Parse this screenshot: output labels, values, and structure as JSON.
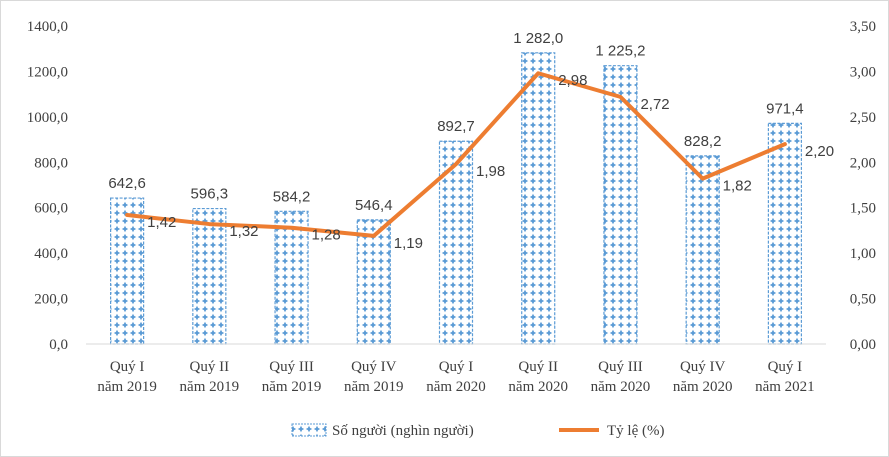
{
  "chart_data": {
    "type": "bar+line",
    "categories": [
      [
        "Quý I",
        "năm 2019"
      ],
      [
        "Quý II",
        "năm 2019"
      ],
      [
        "Quý III",
        "năm 2019"
      ],
      [
        "Quý IV",
        "năm 2019"
      ],
      [
        "Quý I",
        "năm 2020"
      ],
      [
        "Quý II",
        "năm 2020"
      ],
      [
        "Quý III",
        "năm 2020"
      ],
      [
        "Quý IV",
        "năm 2020"
      ],
      [
        "Quý I",
        "năm 2021"
      ]
    ],
    "series": [
      {
        "name": "Số người (nghìn người)",
        "kind": "bar",
        "axis": "left",
        "color": "#5b9bd5",
        "values": [
          642.6,
          596.3,
          584.2,
          546.4,
          892.7,
          1282.0,
          1225.2,
          828.2,
          971.4
        ],
        "labels": [
          "642,6",
          "596,3",
          "584,2",
          "546,4",
          "892,7",
          "1 282,0",
          "1 225,2",
          "828,2",
          "971,4"
        ]
      },
      {
        "name": "Tỷ lệ (%)",
        "kind": "line",
        "axis": "right",
        "color": "#ed7d31",
        "values": [
          1.42,
          1.32,
          1.28,
          1.19,
          1.98,
          2.98,
          2.72,
          1.82,
          2.2
        ],
        "labels": [
          "1,42",
          "1,32",
          "1,28",
          "1,19",
          "1,98",
          "2,98",
          "2,72",
          "1,82",
          "2,20"
        ]
      }
    ],
    "y_left": {
      "min": 0,
      "max": 1400,
      "ticks": [
        0,
        200,
        400,
        600,
        800,
        1000,
        1200,
        1400
      ],
      "tick_labels": [
        "0,0",
        "200,0",
        "400,0",
        "600,0",
        "800,0",
        "1000,0",
        "1200,0",
        "1400,0"
      ]
    },
    "y_right": {
      "min": 0,
      "max": 3.5,
      "ticks": [
        0,
        0.5,
        1,
        1.5,
        2,
        2.5,
        3,
        3.5
      ],
      "tick_labels": [
        "0,00",
        "0,50",
        "1,00",
        "1,50",
        "2,00",
        "2,50",
        "3,00",
        "3,50"
      ]
    },
    "grid": false,
    "legend": "bottom"
  }
}
